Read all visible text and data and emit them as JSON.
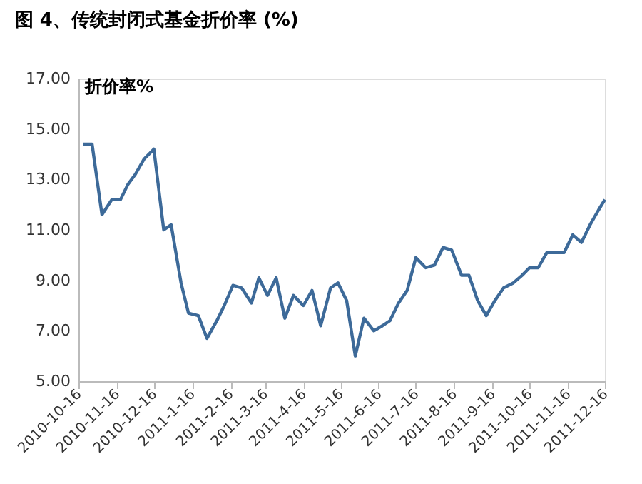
{
  "chart_data": {
    "type": "line",
    "title": "图 4、传统封闭式基金折价率 (%)",
    "ylabel": "折价率%",
    "x": [
      "2010-10-20",
      "2010-10-27",
      "2010-11-04",
      "2010-11-12",
      "2010-11-19",
      "2010-11-25",
      "2010-12-01",
      "2010-12-08",
      "2010-12-16",
      "2010-12-24",
      "2010-12-30",
      "2011-01-07",
      "2011-01-13",
      "2011-01-21",
      "2011-01-28",
      "2011-02-05",
      "2011-02-11",
      "2011-02-18",
      "2011-02-25",
      "2011-03-05",
      "2011-03-11",
      "2011-03-18",
      "2011-03-25",
      "2011-04-01",
      "2011-04-08",
      "2011-04-16",
      "2011-04-23",
      "2011-04-30",
      "2011-05-08",
      "2011-05-14",
      "2011-05-21",
      "2011-05-28",
      "2011-06-04",
      "2011-06-12",
      "2011-06-19",
      "2011-06-25",
      "2011-07-02",
      "2011-07-09",
      "2011-07-16",
      "2011-07-24",
      "2011-07-31",
      "2011-08-07",
      "2011-08-14",
      "2011-08-22",
      "2011-08-28",
      "2011-09-04",
      "2011-09-11",
      "2011-09-18",
      "2011-09-25",
      "2011-10-03",
      "2011-10-10",
      "2011-10-16",
      "2011-10-23",
      "2011-10-30",
      "2011-11-06",
      "2011-11-13",
      "2011-11-20",
      "2011-11-27",
      "2011-12-04",
      "2011-12-11",
      "2011-12-16"
    ],
    "series": [
      {
        "color": "#3d6a99",
        "values": [
          14.4,
          14.4,
          11.6,
          12.2,
          12.2,
          12.8,
          13.2,
          13.8,
          14.2,
          11.0,
          11.2,
          8.9,
          7.7,
          7.6,
          6.7,
          7.4,
          8.0,
          8.8,
          8.7,
          8.1,
          9.1,
          8.4,
          9.1,
          7.5,
          8.4,
          8.0,
          8.6,
          7.2,
          8.7,
          8.9,
          8.2,
          6.0,
          7.5,
          7.0,
          7.2,
          7.4,
          8.1,
          8.6,
          9.9,
          9.5,
          9.6,
          10.3,
          10.2,
          9.2,
          9.2,
          8.2,
          7.6,
          8.2,
          8.7,
          8.9,
          9.2,
          9.5,
          9.5,
          10.1,
          10.1,
          10.1,
          10.8,
          10.5,
          11.2,
          11.8,
          12.2
        ]
      }
    ],
    "xlim": [
      "2010-10-16",
      "2011-12-16"
    ],
    "xticks": [
      {
        "value": "2010-10-16",
        "label": "2010-10-16"
      },
      {
        "value": "2010-11-16",
        "label": "2010-11-16"
      },
      {
        "value": "2010-12-16",
        "label": "2010-12-16"
      },
      {
        "value": "2011-01-16",
        "label": "2011-1-16"
      },
      {
        "value": "2011-02-16",
        "label": "2011-2-16"
      },
      {
        "value": "2011-03-16",
        "label": "2011-3-16"
      },
      {
        "value": "2011-04-16",
        "label": "2011-4-16"
      },
      {
        "value": "2011-05-16",
        "label": "2011-5-16"
      },
      {
        "value": "2011-06-16",
        "label": "2011-6-16"
      },
      {
        "value": "2011-07-16",
        "label": "2011-7-16"
      },
      {
        "value": "2011-08-16",
        "label": "2011-8-16"
      },
      {
        "value": "2011-09-16",
        "label": "2011-9-16"
      },
      {
        "value": "2011-10-16",
        "label": "2011-10-16"
      },
      {
        "value": "2011-11-16",
        "label": "2011-11-16"
      },
      {
        "value": "2011-12-16",
        "label": "2011-12-16"
      }
    ],
    "ylim": [
      5,
      17
    ],
    "yticks": [
      {
        "value": 5,
        "label": "5.00"
      },
      {
        "value": 7,
        "label": "7.00"
      },
      {
        "value": 9,
        "label": "9.00"
      },
      {
        "value": 11,
        "label": "11.00"
      },
      {
        "value": 13,
        "label": "13.00"
      },
      {
        "value": 15,
        "label": "15.00"
      },
      {
        "value": 17,
        "label": "17.00"
      }
    ],
    "grid": false,
    "legend": false,
    "marker": "none",
    "line_style": "solid"
  }
}
